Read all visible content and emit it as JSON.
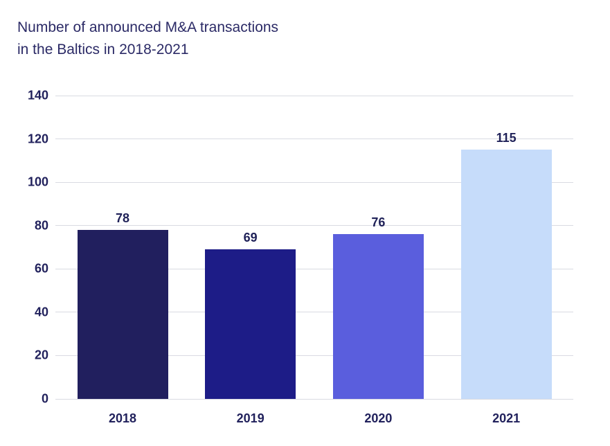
{
  "title": {
    "line1": "Number of announced M&A transactions",
    "line2": "in the Baltics in 2018-2021",
    "color": "#2b2a66"
  },
  "chart_data": {
    "type": "bar",
    "title": "Number of announced M&A transactions in the Baltics in 2018-2021",
    "categories": [
      "2018",
      "2019",
      "2020",
      "2021"
    ],
    "values": [
      78,
      69,
      76,
      115
    ],
    "data_labels": [
      "78",
      "69",
      "76",
      "115"
    ],
    "bar_colors": [
      "#211f5e",
      "#1d1c87",
      "#5a5edd",
      "#c6dcfa"
    ],
    "xlabel": "",
    "ylabel": "",
    "ylim": [
      0,
      140
    ],
    "yticks": [
      0,
      20,
      40,
      60,
      80,
      100,
      120,
      140
    ],
    "grid": "horizontal",
    "gridline_color": "#d9dae2",
    "axis_text_color": "#21215c",
    "value_label_color": "#1f2158",
    "legend": "none"
  }
}
